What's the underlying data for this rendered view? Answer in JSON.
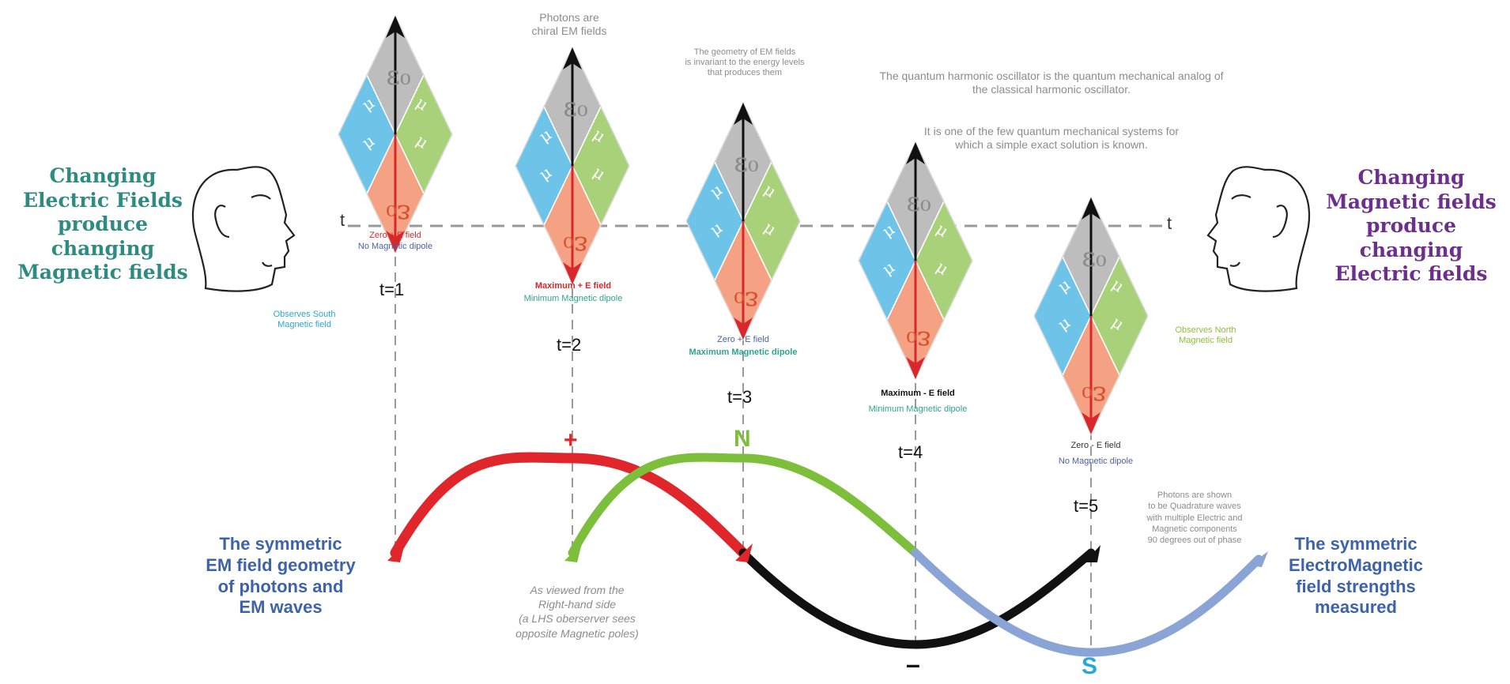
{
  "left_title": "Changing\nElectric Fields\nproduce changing\nMagnetic fields",
  "right_title": "Changing\nMagnetic fields\nproduce changing\nElectric fields",
  "bottom_left_title": "The symmetric\nEM field geometry\nof photons and\nEM waves",
  "bottom_right_title": "The symmetric\nElectroMagnetic\nfield strengths\nmeasured",
  "note_photons_chiral": "Photons are\nchiral EM fields",
  "note_geometry": "The geometry of EM fields\nis invariant to the energy levels\nthat produces them",
  "note_qho_1": "The quantum harmonic oscillator is the quantum mechanical analog of\nthe classical harmonic oscillator.",
  "note_qho_2": "It is one of the few quantum mechanical systems for\nwhich a simple exact solution is known.",
  "note_viewed": "As viewed from the\nRight-hand side\n(a LHS oberserver sees\nopposite Magnetic poles)",
  "note_quadrature": "Photons are shown\nto be Quadrature waves\nwith multiple Electric and\nMagnetic components\n90 degrees out of phase",
  "observer_left": "Observes South\nMagnetic field",
  "observer_right": "Observes North\nMagnetic field",
  "axis_t_left": "t",
  "axis_t_right": "t",
  "steps": [
    {
      "t": "t=1",
      "line1": "Zero + E field",
      "line2": "No Magnetic dipole"
    },
    {
      "t": "t=2",
      "line1": "Maximum + E field",
      "line2": "Minimum Magnetic dipole"
    },
    {
      "t": "t=3",
      "line1": "Zero + E field",
      "line2": "Maximum Magnetic dipole"
    },
    {
      "t": "t=4",
      "line1": "Maximum - E field",
      "line2": "Minimum Magnetic dipole"
    },
    {
      "t": "t=5",
      "line1": "Zero - E field",
      "line2": "No Magnetic dipole"
    }
  ],
  "wave_markers": {
    "plus": "+",
    "north": "N",
    "minus": "–",
    "south": "S"
  },
  "diamond_glyphs": {
    "top": "ε₀",
    "bottom": "ε₀",
    "left": "μ",
    "right": "μ"
  },
  "colors": {
    "teal_title": "#2e8b82",
    "purple_title": "#6d2f8c",
    "blue_title": "#3d63a8",
    "electric_wave": "#e0262b",
    "magnetic_wave": "#7dbf3b",
    "negative_wave": "#111111",
    "south_wave": "#8aa4d6",
    "diamond_top": "#bdbdbd",
    "diamond_left": "#6ec3e8",
    "diamond_right": "#a8d17a",
    "diamond_bottom": "#f4a184"
  }
}
